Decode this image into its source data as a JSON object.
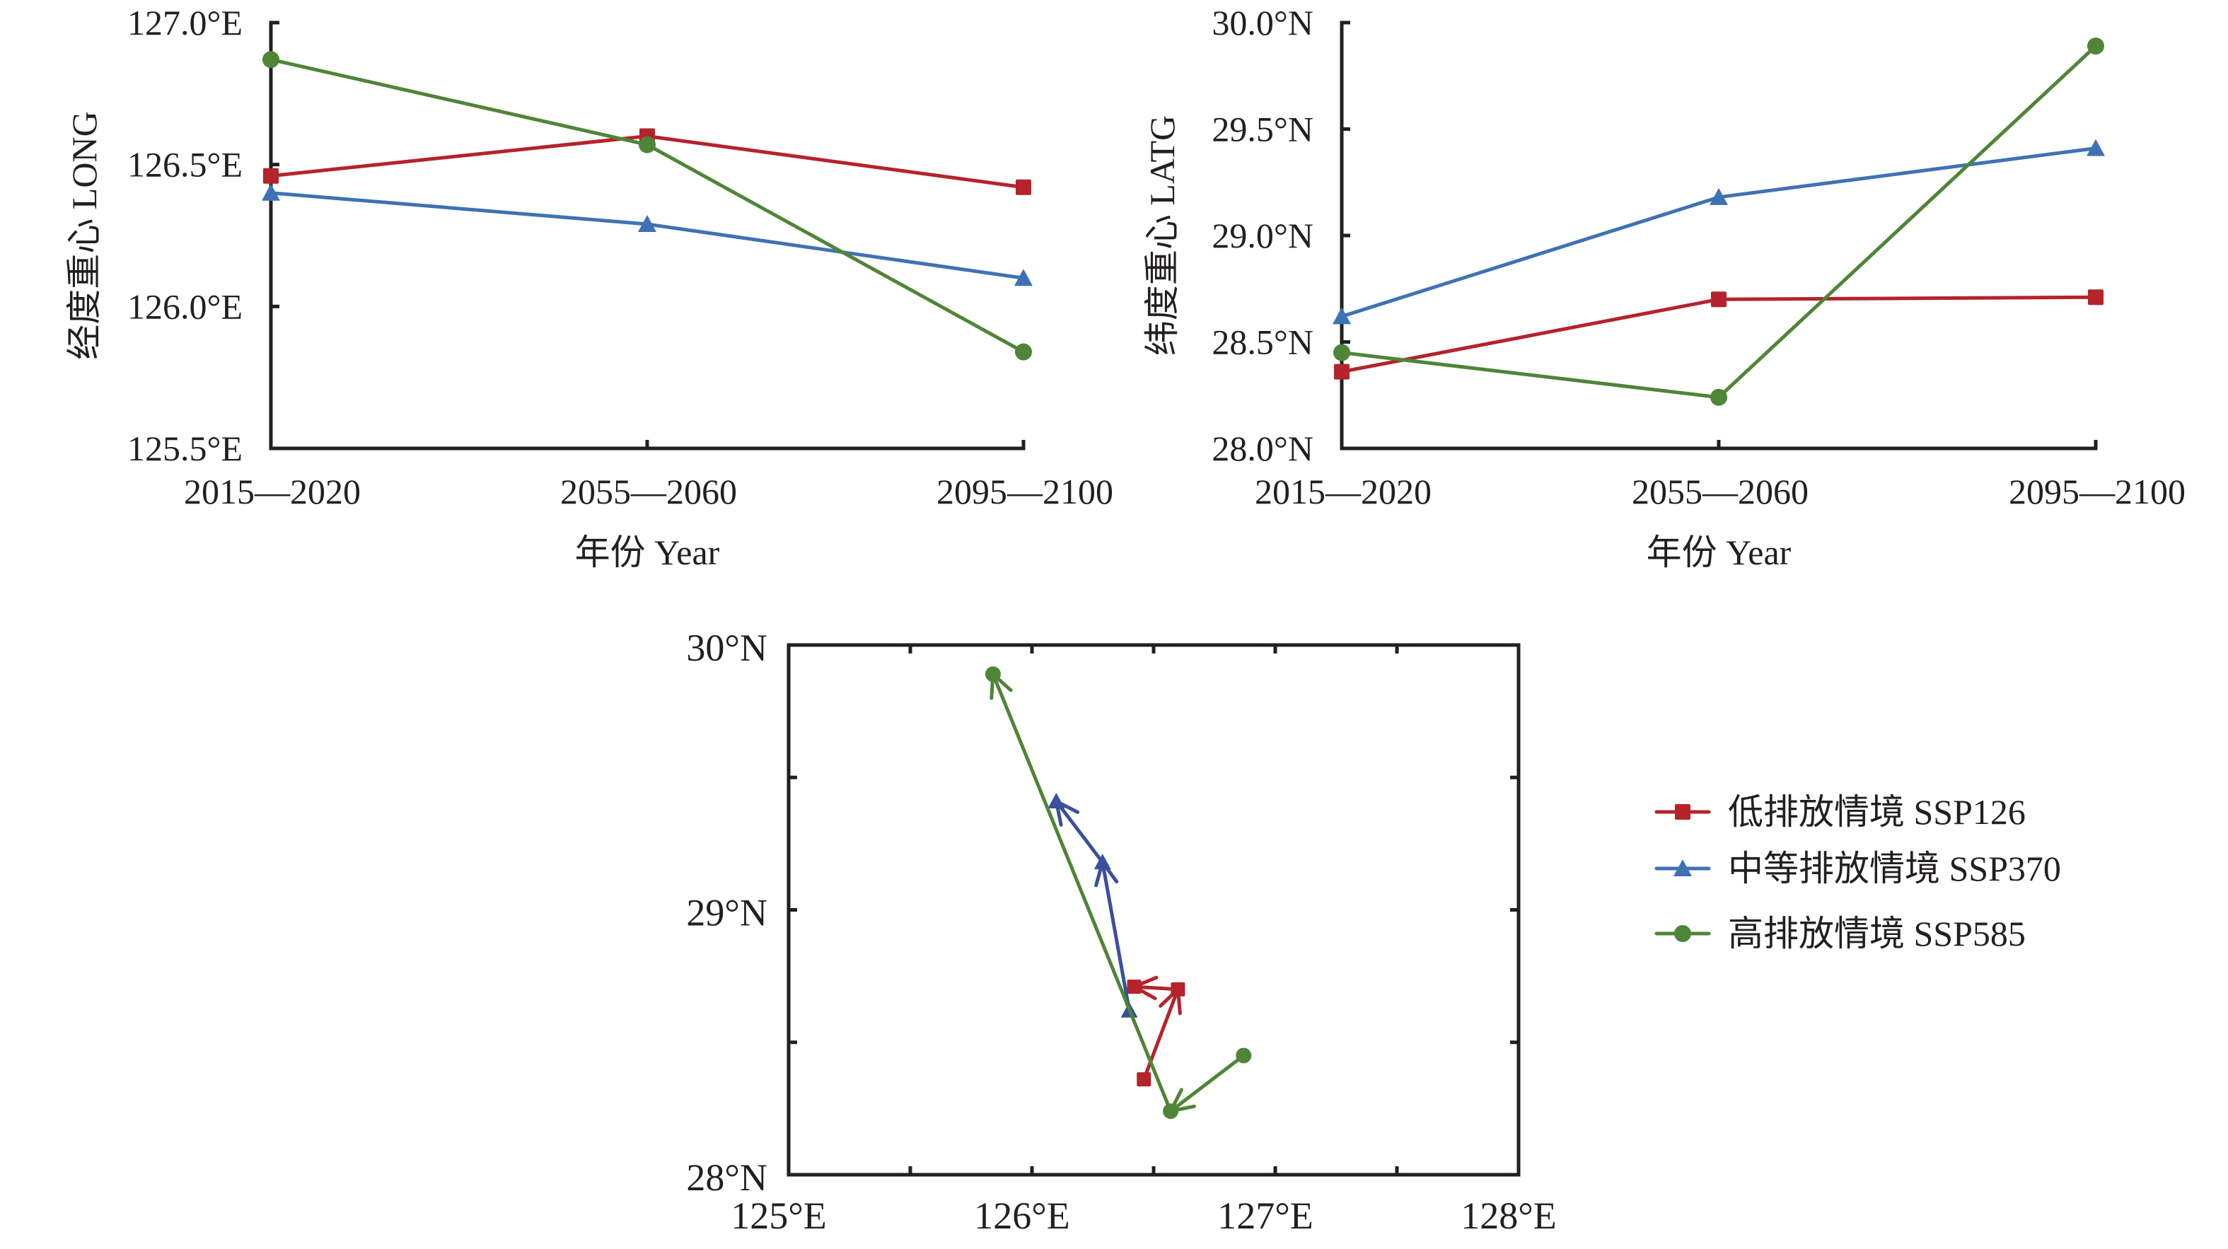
{
  "colors": {
    "ssp126": "#b5232b",
    "ssp370": "#3f72b3",
    "ssp370_map": "#3a4f9e",
    "ssp585": "#4e8536",
    "axis": "#231f20"
  },
  "legend": {
    "items": [
      {
        "key": "ssp126",
        "label": "低排放情境 SSP126",
        "marker": "square"
      },
      {
        "key": "ssp370",
        "label": "中等排放情境 SSP370",
        "marker": "triangle"
      },
      {
        "key": "ssp585",
        "label": "高排放情境 SSP585",
        "marker": "circle"
      }
    ]
  },
  "chart_data": [
    {
      "type": "line",
      "title": "",
      "xlabel": "年份 Year",
      "ylabel": "经度重心 LONG",
      "categories": [
        "2015—2020",
        "2055—2060",
        "2095—2100"
      ],
      "ylim": [
        125.5,
        127.0
      ],
      "yticks": [
        125.5,
        126.0,
        126.5,
        127.0
      ],
      "ytick_labels": [
        "125.5°E",
        "126.0°E",
        "126.5°E",
        "127.0°E"
      ],
      "grid": false,
      "series": [
        {
          "name": "低排放情境 SSP126",
          "key": "ssp126",
          "marker": "square",
          "values": [
            126.46,
            126.6,
            126.42
          ]
        },
        {
          "name": "中等排放情境 SSP370",
          "key": "ssp370",
          "marker": "triangle",
          "values": [
            126.4,
            126.29,
            126.1
          ]
        },
        {
          "name": "高排放情境 SSP585",
          "key": "ssp585",
          "marker": "circle",
          "values": [
            126.87,
            126.57,
            125.84
          ]
        }
      ]
    },
    {
      "type": "line",
      "title": "",
      "xlabel": "年份 Year",
      "ylabel": "纬度重心 LATG",
      "categories": [
        "2015—2020",
        "2055—2060",
        "2095—2100"
      ],
      "ylim": [
        28.0,
        30.0
      ],
      "yticks": [
        28.0,
        28.5,
        29.0,
        29.5,
        30.0
      ],
      "ytick_labels": [
        "28.0°N",
        "28.5°N",
        "29.0°N",
        "29.5°N",
        "30.0°N"
      ],
      "grid": false,
      "series": [
        {
          "name": "低排放情境 SSP126",
          "key": "ssp126",
          "marker": "square",
          "values": [
            28.36,
            28.7,
            28.71
          ]
        },
        {
          "name": "中等排放情境 SSP370",
          "key": "ssp370",
          "marker": "triangle",
          "values": [
            28.62,
            29.18,
            29.41
          ]
        },
        {
          "name": "高排放情境 SSP585",
          "key": "ssp585",
          "marker": "circle",
          "values": [
            28.45,
            28.24,
            29.89
          ]
        }
      ]
    },
    {
      "type": "scatter",
      "title": "",
      "xlabel": "",
      "ylabel": "",
      "xlim": [
        125,
        128
      ],
      "ylim": [
        28,
        30
      ],
      "xticks": [
        125,
        125.5,
        126,
        126.5,
        127,
        127.5,
        128
      ],
      "xtick_labels": [
        "125°E",
        "",
        "126°E",
        "",
        "127°E",
        "",
        "128°E"
      ],
      "yticks": [
        28,
        28.5,
        29,
        29.5,
        30
      ],
      "ytick_labels": [
        "28°N",
        "",
        "29°N",
        "",
        "30°N"
      ],
      "grid": false,
      "legend_position": "right",
      "series": [
        {
          "name": "低排放情境 SSP126",
          "key": "ssp126",
          "marker": "square",
          "x": [
            126.46,
            126.6,
            126.42
          ],
          "y": [
            28.36,
            28.7,
            28.71
          ]
        },
        {
          "name": "中等排放情境 SSP370",
          "key": "ssp370_map",
          "marker": "triangle",
          "x": [
            126.4,
            126.29,
            126.1
          ],
          "y": [
            28.62,
            29.18,
            29.41
          ]
        },
        {
          "name": "高排放情境 SSP585",
          "key": "ssp585",
          "marker": "circle",
          "x": [
            126.87,
            126.57,
            125.84
          ],
          "y": [
            28.45,
            28.24,
            29.89
          ]
        }
      ]
    }
  ]
}
